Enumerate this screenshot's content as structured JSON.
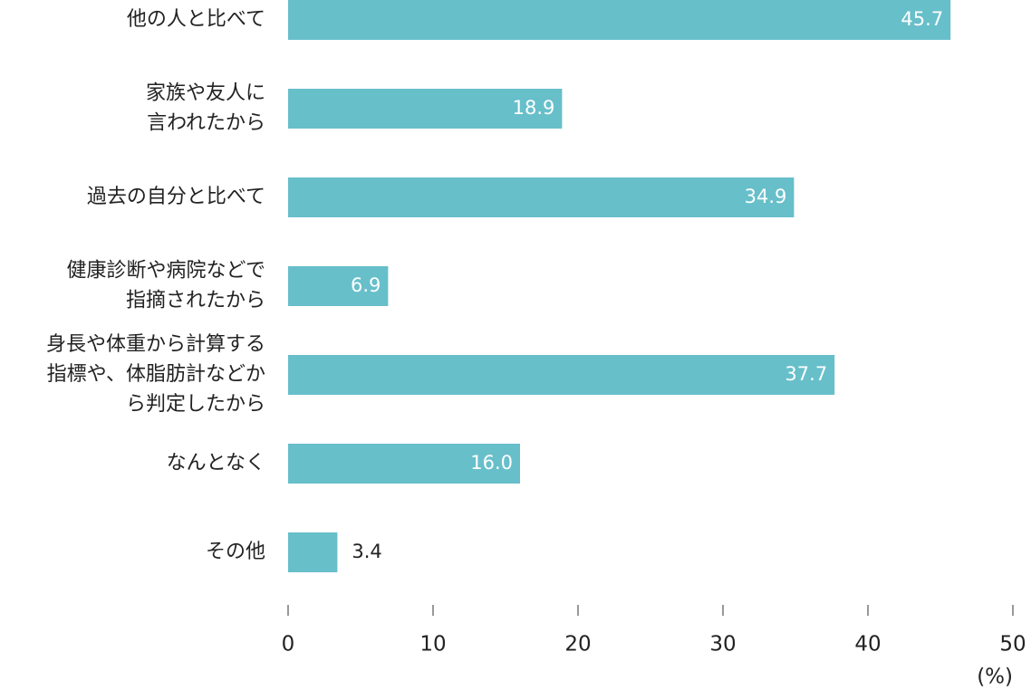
{
  "chart_data": {
    "type": "bar",
    "orientation": "horizontal",
    "categories": [
      "他の人と比べて",
      "家族や友人に\n言われたから",
      "過去の自分と比べて",
      "健康診断や病院などで\n指摘されたから",
      "身長や体重から計算する\n指標や、体脂肪計などか\nら判定したから",
      "なんとなく",
      "その他"
    ],
    "values": [
      45.7,
      18.9,
      34.9,
      6.9,
      37.7,
      16.0,
      3.4
    ],
    "value_labels": [
      "45.7",
      "18.9",
      "34.9",
      "6.9",
      "37.7",
      "16.0",
      "3.4"
    ],
    "color": "#67bfca",
    "xlim": [
      0,
      50
    ],
    "xticks": [
      0,
      10,
      20,
      30,
      40,
      50
    ],
    "xlabel": "(%)",
    "grid": false
  }
}
